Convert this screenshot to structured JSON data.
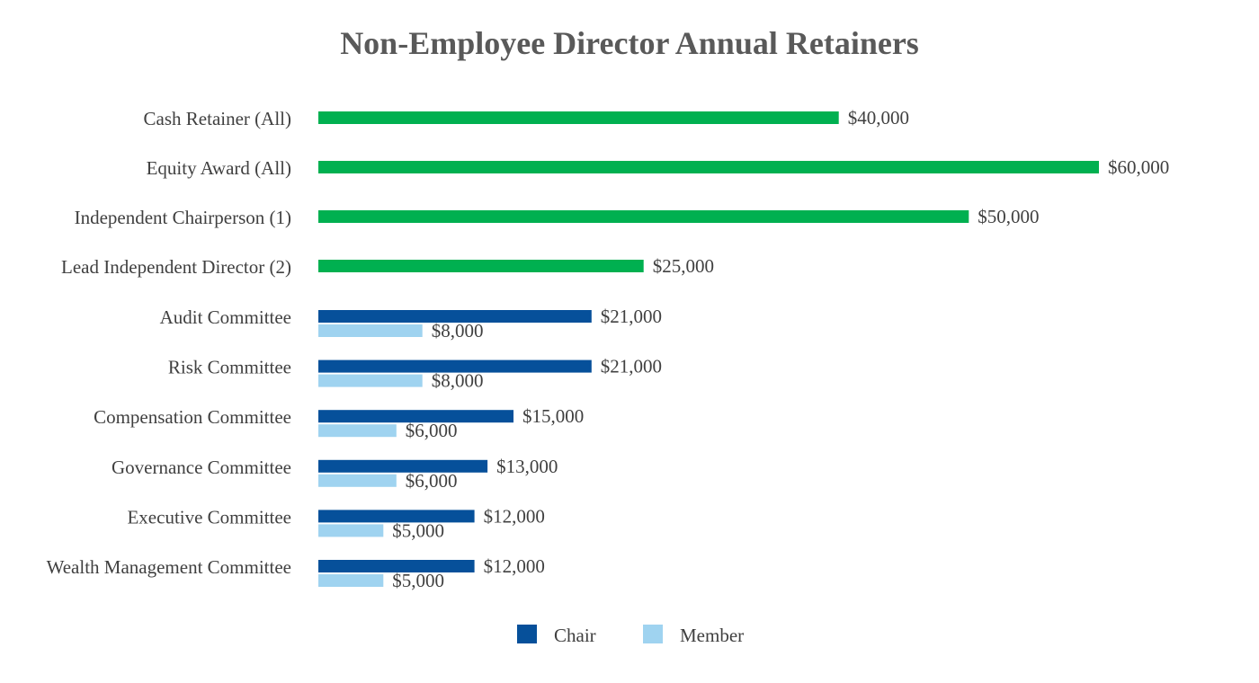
{
  "chart_data": {
    "type": "bar",
    "orientation": "horizontal",
    "title": "Non-Employee Director Annual Retainers",
    "xlabel": "",
    "ylabel": "",
    "xlim": [
      0,
      60000
    ],
    "grid": false,
    "legend_position": "bottom-center",
    "colors": {
      "all": "#00b050",
      "chair": "#06509a",
      "member": "#9fd3f0"
    },
    "single_rows": [
      {
        "label": "Cash Retainer (All)",
        "value": 40000,
        "value_label": "$40,000"
      },
      {
        "label": "Equity Award (All)",
        "value": 60000,
        "value_label": "$60,000"
      },
      {
        "label": "Independent Chairperson (1)",
        "value": 50000,
        "value_label": "$50,000"
      },
      {
        "label": "Lead Independent Director (2)",
        "value": 25000,
        "value_label": "$25,000"
      }
    ],
    "committees": [
      {
        "label": "Audit Committee",
        "chair": 21000,
        "chair_label": "$21,000",
        "member": 8000,
        "member_label": "$8,000"
      },
      {
        "label": "Risk Committee",
        "chair": 21000,
        "chair_label": "$21,000",
        "member": 8000,
        "member_label": "$8,000"
      },
      {
        "label": "Compensation Committee",
        "chair": 15000,
        "chair_label": "$15,000",
        "member": 6000,
        "member_label": "$6,000"
      },
      {
        "label": "Governance Committee",
        "chair": 13000,
        "chair_label": "$13,000",
        "member": 6000,
        "member_label": "$6,000"
      },
      {
        "label": "Executive Committee",
        "chair": 12000,
        "chair_label": "$12,000",
        "member": 5000,
        "member_label": "$5,000"
      },
      {
        "label": "Wealth Management Committee",
        "chair": 12000,
        "chair_label": "$12,000",
        "member": 5000,
        "member_label": "$5,000"
      }
    ],
    "legend": [
      {
        "name": "Chair",
        "color": "#06509a"
      },
      {
        "name": "Member",
        "color": "#9fd3f0"
      }
    ]
  }
}
